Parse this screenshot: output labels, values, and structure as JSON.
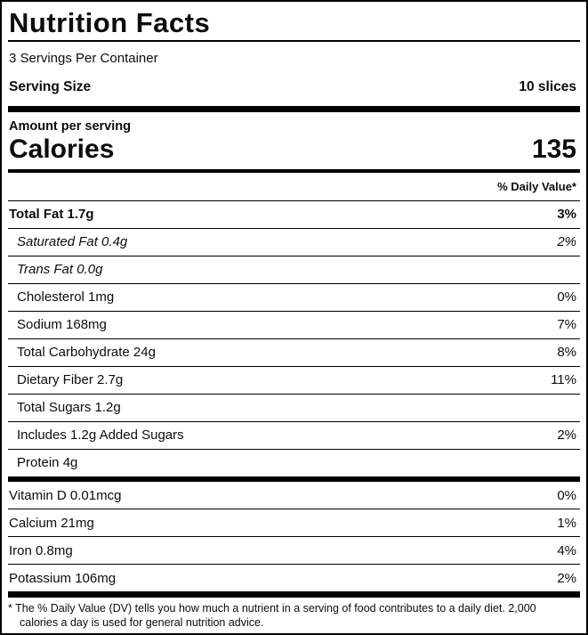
{
  "label": {
    "title": "Nutrition Facts",
    "servings_per_container": "3 Servings Per Container",
    "serving_size_label": "Serving Size",
    "serving_size_value": "10 slices",
    "amount_per_serving": "Amount per serving",
    "calories_label": "Calories",
    "calories_value": "135",
    "daily_value_header": "% Daily Value*",
    "nutrients": [
      {
        "name": "Total Fat 1.7g",
        "dv": "3%",
        "style": "bold",
        "indent": false
      },
      {
        "name": "Saturated Fat 0.4g",
        "dv": "2%",
        "style": "italic",
        "indent": true
      },
      {
        "name": "Trans Fat 0.0g",
        "dv": "",
        "style": "italic",
        "indent": true
      },
      {
        "name": "Cholesterol 1mg",
        "dv": "0%",
        "style": "regular",
        "indent": true
      },
      {
        "name": "Sodium 168mg",
        "dv": "7%",
        "style": "regular",
        "indent": true
      },
      {
        "name": "Total Carbohydrate 24g",
        "dv": "8%",
        "style": "regular",
        "indent": true
      },
      {
        "name": "Dietary Fiber 2.7g",
        "dv": "11%",
        "style": "regular",
        "indent": true
      },
      {
        "name": "Total Sugars 1.2g",
        "dv": "",
        "style": "regular",
        "indent": true
      },
      {
        "name": "Includes 1.2g Added Sugars",
        "dv": "2%",
        "style": "regular",
        "indent": true
      },
      {
        "name": "Protein 4g",
        "dv": "",
        "style": "regular",
        "indent": true
      }
    ],
    "micronutrients": [
      {
        "name": "Vitamin D 0.01mcg",
        "dv": "0%",
        "style": "regular",
        "indent": false
      },
      {
        "name": "Calcium 21mg",
        "dv": "1%",
        "style": "regular",
        "indent": false
      },
      {
        "name": "Iron 0.8mg",
        "dv": "4%",
        "style": "regular",
        "indent": false
      },
      {
        "name": "Potassium 106mg",
        "dv": "2%",
        "style": "regular",
        "indent": false
      }
    ],
    "footnote": "* The % Daily Value (DV) tells you how much a nutrient in a serving of food contributes to a daily diet. 2,000 calories a day is used for general nutrition advice."
  },
  "colors": {
    "text": "#0d0d0d",
    "background": "#ffffff",
    "rule": "#000000"
  }
}
